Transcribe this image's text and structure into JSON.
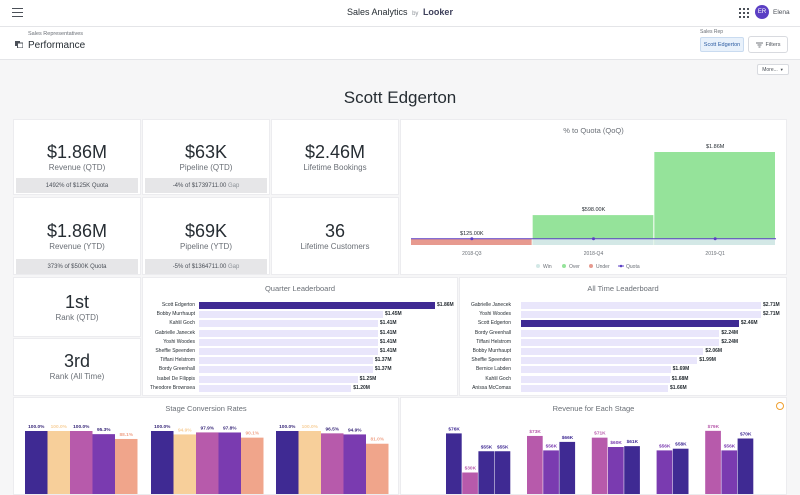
{
  "topbar": {
    "title": "Sales Analytics",
    "by": "by",
    "brand": "Looker",
    "avatar_initials": "ER",
    "user_name": "Elena"
  },
  "header": {
    "crumb": "Sales Representatives",
    "title": "Performance",
    "filter_label": "Sales Rep",
    "filter_value": "Scott Edgerton",
    "filters_button": "Filters"
  },
  "more_button": "More...",
  "rep_name": "Scott Edgerton",
  "kpis": {
    "revenue_qtd": {
      "value": "$1.86M",
      "label": "Revenue (QTD)",
      "foot_main": "1492% of $125K Quota",
      "foot_muted": ""
    },
    "pipeline_qtd": {
      "value": "$63K",
      "label": "Pipeline (QTD)",
      "foot_main": "-4% of $1739711.00",
      "foot_muted": "Gap"
    },
    "lifetime_bookings": {
      "value": "$2.46M",
      "label": "Lifetime Bookings"
    },
    "revenue_ytd": {
      "value": "$1.86M",
      "label": "Revenue (YTD)",
      "foot_main": "373% of $500K Quota",
      "foot_muted": ""
    },
    "pipeline_ytd": {
      "value": "$69K",
      "label": "Pipeline (YTD)",
      "foot_main": "-5% of $1364711.00",
      "foot_muted": "Gap"
    },
    "lifetime_customers": {
      "value": "36",
      "label": "Lifetime Customers"
    },
    "rank_qtd": {
      "value": "1st",
      "label": "Rank (QTD)"
    },
    "rank_all": {
      "value": "3rd",
      "label": "Rank (All Time)"
    }
  },
  "colors": {
    "accent": "#4a2fa3",
    "win": "#d3e8e6",
    "over": "#95e39a",
    "under": "#e79a8f",
    "quota": "#5b3fc4",
    "bar_light": "#e9e6fb",
    "bar_dark": "#3f2a93"
  },
  "quota_chart": {
    "title": "% to Quota (QoQ)",
    "chart_data": {
      "type": "bar",
      "categories": [
        "2018-Q3",
        "2018-Q4",
        "2019-Q1"
      ],
      "series": [
        {
          "name": "Win",
          "values": [
            0,
            0,
            0
          ]
        },
        {
          "name": "Over",
          "values": [
            0,
            598000,
            1860000
          ]
        },
        {
          "name": "Under",
          "values": [
            125000,
            0,
            0
          ]
        },
        {
          "name": "Quota",
          "values": [
            125000,
            125000,
            125000
          ]
        }
      ],
      "data_labels": [
        "$125.00K",
        "$598.00K",
        "$1.86M"
      ],
      "legend": [
        "Win",
        "Over",
        "Under",
        "Quota"
      ],
      "legend_position": "bottom",
      "ylim": [
        0,
        1900000
      ]
    }
  },
  "quarter_lb": {
    "title": "Quarter Leaderboard",
    "chart_data": {
      "type": "bar",
      "orientation": "horizontal",
      "categories": [
        "Scott Edgerton",
        "Bobby Murrhaupt",
        "Kahlil Goch",
        "Gabrielle Janecek",
        "Yoshi Woodes",
        "Sheffie Speenden",
        "Tiffani Helstrom",
        "Bordy Greenhall",
        "Isabel De Filippis",
        "Theodore Brownsea"
      ],
      "values": [
        1.86,
        1.45,
        1.41,
        1.41,
        1.41,
        1.41,
        1.37,
        1.37,
        1.25,
        1.2
      ],
      "labels": [
        "$1.86M",
        "$1.45M",
        "$1.41M",
        "$1.41M",
        "$1.41M",
        "$1.41M",
        "$1.37M",
        "$1.37M",
        "$1.25M",
        "$1.20M"
      ],
      "highlight": "Scott Edgerton"
    }
  },
  "alltime_lb": {
    "title": "All Time Leaderboard",
    "chart_data": {
      "type": "bar",
      "orientation": "horizontal",
      "categories": [
        "Gabrielle Janecek",
        "Yoshi Woodes",
        "Scott Edgerton",
        "Bordy Greenhall",
        "Tiffani Helstrom",
        "Bobby Murrhaupt",
        "Sheffie Speenden",
        "Bernice Labden",
        "Kahlil Goch",
        "Anissa McComas"
      ],
      "values": [
        2.71,
        2.71,
        2.46,
        2.24,
        2.24,
        2.06,
        1.99,
        1.69,
        1.68,
        1.66
      ],
      "labels": [
        "$2.71M",
        "$2.71M",
        "$2.46M",
        "$2.24M",
        "$2.24M",
        "$2.06M",
        "$1.99M",
        "$1.69M",
        "$1.68M",
        "$1.66M"
      ],
      "highlight": "Scott Edgerton"
    }
  },
  "stage_conv": {
    "title": "Stage Conversion Rates",
    "chart_data": [
      {
        "type": "bar",
        "values": [
          100.0,
          100.0,
          100.0,
          95.3,
          88.1
        ],
        "labels": [
          "100.0%",
          "100.0%",
          "100.0%",
          "95.3%",
          "88.1%"
        ]
      },
      {
        "type": "bar",
        "values": [
          100.0,
          94.9,
          97.9,
          97.8,
          90.1
        ],
        "labels": [
          "100.0%",
          "94.9%",
          "97.9%",
          "97.8%",
          "90.1%"
        ]
      },
      {
        "type": "bar",
        "values": [
          100.0,
          100.0,
          96.5,
          94.9,
          81.0
        ],
        "labels": [
          "100.0%",
          "100.0%",
          "96.5%",
          "94.9%",
          "81.0%"
        ]
      }
    ],
    "bar_colors": [
      "#3f2a93",
      "#f7cf9a",
      "#b75aab",
      "#7a3bb0",
      "#f0a58b"
    ]
  },
  "stage_rev": {
    "title": "Revenue for Each Stage",
    "chart_data": {
      "type": "bar",
      "values": [
        76,
        30,
        55,
        55,
        0,
        73,
        56,
        66,
        0,
        71,
        60,
        61,
        0,
        56,
        58,
        0,
        79,
        56,
        70
      ],
      "labels": [
        "$76K",
        "$30K",
        "$55K",
        "$55K",
        "",
        "$73K",
        "$56K",
        "$66K",
        "",
        "$71K",
        "$60K",
        "$61K",
        "",
        "$56K",
        "$58K",
        "",
        "$79K",
        "$56K",
        "$70K"
      ],
      "colors": [
        "#3f2a93",
        "#b75aab",
        "#3f2a93",
        "#3f2a93",
        "",
        "#b75aab",
        "#7a3bb0",
        "#3f2a93",
        "",
        "#b75aab",
        "#7a3bb0",
        "#3f2a93",
        "",
        "#7a3bb0",
        "#3f2a93",
        "",
        "#b75aab",
        "#7a3bb0",
        "#3f2a93"
      ]
    }
  }
}
